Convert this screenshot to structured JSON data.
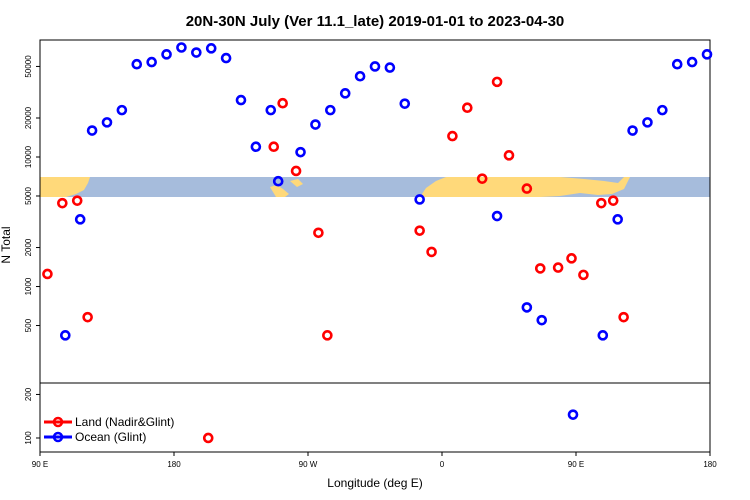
{
  "chart_data": {
    "type": "scatter",
    "title": "20N-30N July (Ver 11.1_late)   2019-01-01 to 2023-04-30",
    "xlabel": "Longitude (deg E)",
    "ylabel": "N Total",
    "x_ticks": [
      {
        "value": 90,
        "label": "90 E"
      },
      {
        "value": 180,
        "label": "180"
      },
      {
        "value": 270,
        "label": "90 W"
      },
      {
        "value": 360,
        "label": "0"
      },
      {
        "value": 450,
        "label": "90 E"
      },
      {
        "value": 540,
        "label": "180"
      }
    ],
    "xlim": [
      90,
      540
    ],
    "main_panel": {
      "ylim": [
        180,
        80000
      ],
      "log_scale": true,
      "y_ticks": [
        500,
        1000,
        2000,
        5000,
        10000,
        20000,
        50000
      ]
    },
    "lower_panel": {
      "ylim": [
        80,
        240
      ],
      "log_scale": true,
      "y_ticks": [
        100,
        200
      ]
    },
    "legend": {
      "position": "bottom-left",
      "entries": [
        {
          "label": "Land (Nadir&Glint)",
          "color": "#ff0000"
        },
        {
          "label": "Ocean (Glint)",
          "color": "#0000ff"
        }
      ]
    },
    "series": [
      {
        "name": "Land (Nadir&Glint)",
        "color": "#ff0000",
        "points": [
          [
            95,
            1250
          ],
          [
            105,
            4400
          ],
          [
            115,
            4600
          ],
          [
            122,
            580
          ],
          [
            203,
            100
          ],
          [
            247,
            12000
          ],
          [
            253,
            26000
          ],
          [
            262,
            7800
          ],
          [
            277,
            2600
          ],
          [
            283,
            420
          ],
          [
            345,
            2700
          ],
          [
            353,
            1850
          ],
          [
            367,
            14500
          ],
          [
            377,
            24000
          ],
          [
            387,
            6800
          ],
          [
            397,
            38000
          ],
          [
            405,
            10300
          ],
          [
            417,
            5700
          ],
          [
            426,
            1380
          ],
          [
            438,
            1400
          ],
          [
            447,
            1650
          ],
          [
            455,
            1230
          ],
          [
            467,
            4400
          ],
          [
            475,
            4600
          ],
          [
            482,
            580
          ]
        ]
      },
      {
        "name": "Ocean (Glint)",
        "color": "#0000ff",
        "points": [
          [
            107,
            420
          ],
          [
            117,
            3300
          ],
          [
            125,
            16000
          ],
          [
            135,
            18500
          ],
          [
            145,
            23000
          ],
          [
            155,
            52000
          ],
          [
            165,
            54000
          ],
          [
            175,
            62000
          ],
          [
            185,
            70000
          ],
          [
            195,
            64000
          ],
          [
            205,
            69000
          ],
          [
            215,
            58000
          ],
          [
            225,
            27500
          ],
          [
            235,
            12000
          ],
          [
            245,
            23000
          ],
          [
            250,
            6500
          ],
          [
            265,
            10900
          ],
          [
            275,
            17800
          ],
          [
            285,
            23000
          ],
          [
            295,
            31000
          ],
          [
            305,
            42000
          ],
          [
            315,
            50000
          ],
          [
            325,
            49000
          ],
          [
            335,
            25800
          ],
          [
            345,
            4700
          ],
          [
            397,
            3500
          ],
          [
            417,
            690
          ],
          [
            427,
            550
          ],
          [
            448,
            145
          ],
          [
            468,
            420
          ],
          [
            478,
            3300
          ],
          [
            488,
            16000
          ],
          [
            498,
            18500
          ],
          [
            508,
            23000
          ],
          [
            518,
            52000
          ],
          [
            528,
            54000
          ],
          [
            538,
            62000
          ]
        ]
      }
    ]
  }
}
